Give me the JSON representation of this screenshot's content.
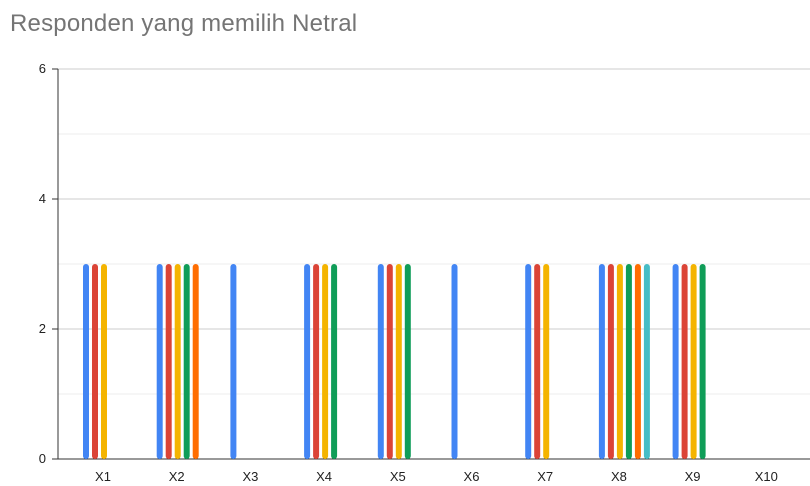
{
  "chart_data": {
    "type": "bar",
    "title": "Responden yang memilih Netral",
    "xlabel": "",
    "ylabel": "",
    "ylim": [
      0,
      6
    ],
    "yticks": [
      0,
      2,
      4,
      6
    ],
    "minor_gridlines": true,
    "legend": "none",
    "categories": [
      "X1",
      "X2",
      "X3",
      "X4",
      "X5",
      "X6",
      "X7",
      "X8",
      "X9",
      "X10"
    ],
    "series_colors": [
      "#4285f4",
      "#db4437",
      "#f4b400",
      "#0f9d58",
      "#ff6d01",
      "#46bdc6"
    ],
    "bars_per_category": [
      [
        3,
        3,
        3
      ],
      [
        3,
        3,
        3,
        3,
        3
      ],
      [
        3
      ],
      [
        3,
        3,
        3,
        3
      ],
      [
        3,
        3,
        3,
        3
      ],
      [
        3
      ],
      [
        3,
        3,
        3
      ],
      [
        3,
        3,
        3,
        3,
        3,
        3
      ],
      [
        3,
        3,
        3,
        3
      ],
      []
    ],
    "bar_color_order": [
      [
        "#4285f4",
        "#db4437",
        "#f4b400"
      ],
      [
        "#4285f4",
        "#db4437",
        "#f4b400",
        "#0f9d58",
        "#ff6d01"
      ],
      [
        "#4285f4"
      ],
      [
        "#4285f4",
        "#db4437",
        "#f4b400",
        "#0f9d58"
      ],
      [
        "#4285f4",
        "#db4437",
        "#f4b400",
        "#0f9d58"
      ],
      [
        "#4285f4"
      ],
      [
        "#4285f4",
        "#db4437",
        "#f4b400"
      ],
      [
        "#4285f4",
        "#db4437",
        "#f4b400",
        "#0f9d58",
        "#ff6d01",
        "#46bdc6"
      ],
      [
        "#4285f4",
        "#db4437",
        "#f4b400",
        "#0f9d58"
      ],
      []
    ]
  }
}
